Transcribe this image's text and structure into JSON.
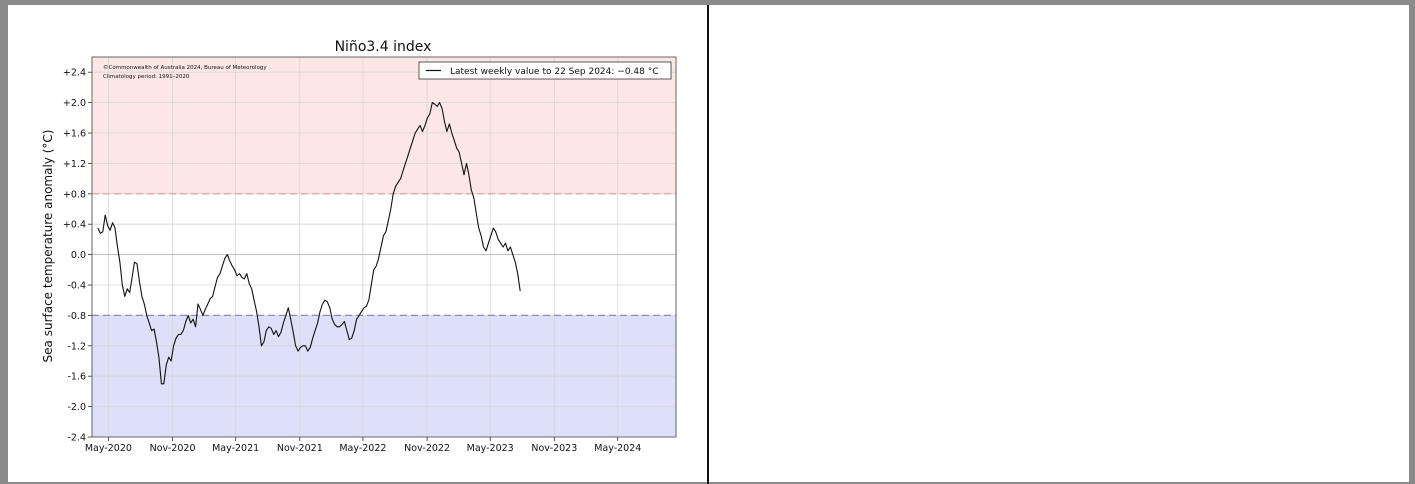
{
  "chart_data": {
    "type": "line",
    "title": "Niño3.4 index",
    "ylabel": "Sea surface temperature anomaly (°C)",
    "xlabel": "",
    "ylim": [
      -2.4,
      2.6
    ],
    "yticks": [
      "+2.4",
      "+2.0",
      "+1.6",
      "+1.2",
      "+0.8",
      "+0.4",
      "0.0",
      "-0.4",
      "-0.8",
      "-1.2",
      "-1.6",
      "-2.0",
      "-2.4"
    ],
    "ytick_values": [
      2.4,
      2.0,
      1.6,
      1.2,
      0.8,
      0.4,
      0.0,
      -0.4,
      -0.8,
      -1.2,
      -1.6,
      -2.0,
      -2.4
    ],
    "xticks": [
      "May-2020",
      "Nov-2020",
      "May-2021",
      "Nov-2021",
      "May-2022",
      "Nov-2022",
      "May-2023",
      "Nov-2023",
      "May-2024"
    ],
    "xtick_dates": [
      "2020-05-01",
      "2020-11-01",
      "2021-05-01",
      "2021-11-01",
      "2022-05-01",
      "2022-11-01",
      "2023-05-01",
      "2023-11-01",
      "2024-05-01"
    ],
    "xlim": [
      "2020-03-15",
      "2024-10-15"
    ],
    "grid": true,
    "legend_position": "top-right",
    "credit_line1": "©Commonwealth of Australia 2024, Bureau of Meteorology",
    "credit_line2": "Climatology period: 1991–2020",
    "thresholds": [
      0.8,
      -0.8
    ],
    "region_colors": {
      "warm": "#fde6e6",
      "cool": "#dedff9",
      "warm_line": "#e59a9a",
      "cool_line": "#8a8ac0",
      "series": "#111111"
    },
    "series": [
      {
        "name": "Latest weekly value to 22 Sep 2024: −0.48 °C",
        "points": [
          [
            "2020-04-01",
            0.35
          ],
          [
            "2020-04-08",
            0.28
          ],
          [
            "2020-04-15",
            0.3
          ],
          [
            "2020-04-22",
            0.52
          ],
          [
            "2020-04-29",
            0.38
          ],
          [
            "2020-05-06",
            0.32
          ],
          [
            "2020-05-13",
            0.42
          ],
          [
            "2020-05-20",
            0.35
          ],
          [
            "2020-05-27",
            0.1
          ],
          [
            "2020-06-03",
            -0.1
          ],
          [
            "2020-06-10",
            -0.4
          ],
          [
            "2020-06-17",
            -0.55
          ],
          [
            "2020-06-24",
            -0.45
          ],
          [
            "2020-07-01",
            -0.5
          ],
          [
            "2020-07-08",
            -0.3
          ],
          [
            "2020-07-15",
            -0.1
          ],
          [
            "2020-07-22",
            -0.12
          ],
          [
            "2020-07-29",
            -0.35
          ],
          [
            "2020-08-05",
            -0.55
          ],
          [
            "2020-08-12",
            -0.65
          ],
          [
            "2020-08-19",
            -0.8
          ],
          [
            "2020-08-26",
            -0.9
          ],
          [
            "2020-09-02",
            -1.0
          ],
          [
            "2020-09-09",
            -0.98
          ],
          [
            "2020-09-16",
            -1.15
          ],
          [
            "2020-09-23",
            -1.35
          ],
          [
            "2020-09-30",
            -1.7
          ],
          [
            "2020-10-07",
            -1.7
          ],
          [
            "2020-10-14",
            -1.45
          ],
          [
            "2020-10-21",
            -1.35
          ],
          [
            "2020-10-28",
            -1.4
          ],
          [
            "2020-11-04",
            -1.2
          ],
          [
            "2020-11-11",
            -1.1
          ],
          [
            "2020-11-18",
            -1.05
          ],
          [
            "2020-11-25",
            -1.05
          ],
          [
            "2020-12-02",
            -1.0
          ],
          [
            "2020-12-09",
            -0.88
          ],
          [
            "2020-12-16",
            -0.8
          ],
          [
            "2020-12-23",
            -0.9
          ],
          [
            "2020-12-30",
            -0.85
          ],
          [
            "2021-01-06",
            -0.95
          ],
          [
            "2021-01-13",
            -0.65
          ],
          [
            "2021-01-20",
            -0.72
          ],
          [
            "2021-01-27",
            -0.8
          ],
          [
            "2021-02-03",
            -0.72
          ],
          [
            "2021-02-10",
            -0.65
          ],
          [
            "2021-02-17",
            -0.58
          ],
          [
            "2021-02-24",
            -0.55
          ],
          [
            "2021-03-03",
            -0.42
          ],
          [
            "2021-03-10",
            -0.3
          ],
          [
            "2021-03-17",
            -0.25
          ],
          [
            "2021-03-24",
            -0.15
          ],
          [
            "2021-03-31",
            -0.05
          ],
          [
            "2021-04-07",
            0.0
          ],
          [
            "2021-04-14",
            -0.08
          ],
          [
            "2021-04-21",
            -0.15
          ],
          [
            "2021-04-28",
            -0.2
          ],
          [
            "2021-05-05",
            -0.28
          ],
          [
            "2021-05-12",
            -0.25
          ],
          [
            "2021-05-19",
            -0.3
          ],
          [
            "2021-05-26",
            -0.32
          ],
          [
            "2021-06-02",
            -0.25
          ],
          [
            "2021-06-09",
            -0.38
          ],
          [
            "2021-06-16",
            -0.45
          ],
          [
            "2021-06-23",
            -0.6
          ],
          [
            "2021-06-30",
            -0.75
          ],
          [
            "2021-07-07",
            -0.95
          ],
          [
            "2021-07-14",
            -1.2
          ],
          [
            "2021-07-21",
            -1.15
          ],
          [
            "2021-07-28",
            -1.0
          ],
          [
            "2021-08-04",
            -0.95
          ],
          [
            "2021-08-11",
            -0.97
          ],
          [
            "2021-08-18",
            -1.05
          ],
          [
            "2021-08-25",
            -1.0
          ],
          [
            "2021-09-01",
            -1.08
          ],
          [
            "2021-09-08",
            -1.02
          ],
          [
            "2021-09-15",
            -0.9
          ],
          [
            "2021-09-22",
            -0.8
          ],
          [
            "2021-09-29",
            -0.7
          ],
          [
            "2021-10-06",
            -0.85
          ],
          [
            "2021-10-13",
            -1.02
          ],
          [
            "2021-10-20",
            -1.2
          ],
          [
            "2021-10-27",
            -1.27
          ],
          [
            "2021-11-03",
            -1.22
          ],
          [
            "2021-11-10",
            -1.2
          ],
          [
            "2021-11-17",
            -1.2
          ],
          [
            "2021-11-24",
            -1.27
          ],
          [
            "2021-12-01",
            -1.22
          ],
          [
            "2021-12-08",
            -1.1
          ],
          [
            "2021-12-15",
            -1.0
          ],
          [
            "2021-12-22",
            -0.9
          ],
          [
            "2021-12-29",
            -0.75
          ],
          [
            "2022-01-05",
            -0.65
          ],
          [
            "2022-01-12",
            -0.6
          ],
          [
            "2022-01-19",
            -0.62
          ],
          [
            "2022-01-26",
            -0.7
          ],
          [
            "2022-02-02",
            -0.85
          ],
          [
            "2022-02-09",
            -0.92
          ],
          [
            "2022-02-16",
            -0.95
          ],
          [
            "2022-02-23",
            -0.95
          ],
          [
            "2022-03-02",
            -0.92
          ],
          [
            "2022-03-09",
            -0.88
          ],
          [
            "2022-03-16",
            -1.0
          ],
          [
            "2022-03-23",
            -1.12
          ],
          [
            "2022-03-30",
            -1.1
          ],
          [
            "2022-04-06",
            -1.0
          ],
          [
            "2022-04-13",
            -0.85
          ],
          [
            "2022-04-20",
            -0.8
          ],
          [
            "2022-04-27",
            -0.75
          ],
          [
            "2022-05-04",
            -0.7
          ],
          [
            "2022-05-11",
            -0.68
          ],
          [
            "2022-05-18",
            -0.6
          ],
          [
            "2022-05-25",
            -0.4
          ],
          [
            "2022-06-01",
            -0.2
          ],
          [
            "2022-06-08",
            -0.15
          ],
          [
            "2022-06-15",
            -0.05
          ],
          [
            "2022-06-22",
            0.1
          ],
          [
            "2022-06-29",
            0.25
          ],
          [
            "2022-07-06",
            0.3
          ],
          [
            "2022-07-13",
            0.45
          ],
          [
            "2022-07-20",
            0.6
          ],
          [
            "2022-07-27",
            0.8
          ],
          [
            "2022-08-03",
            0.9
          ],
          [
            "2022-08-10",
            0.95
          ],
          [
            "2022-08-17",
            1.0
          ],
          [
            "2022-08-24",
            1.1
          ],
          [
            "2022-08-31",
            1.2
          ],
          [
            "2022-09-07",
            1.3
          ],
          [
            "2022-09-14",
            1.4
          ],
          [
            "2022-09-21",
            1.5
          ],
          [
            "2022-09-28",
            1.6
          ],
          [
            "2022-10-05",
            1.65
          ],
          [
            "2022-10-12",
            1.7
          ],
          [
            "2022-10-19",
            1.62
          ],
          [
            "2022-10-26",
            1.7
          ],
          [
            "2022-11-02",
            1.8
          ],
          [
            "2022-11-09",
            1.85
          ],
          [
            "2022-11-16",
            2.0
          ],
          [
            "2022-11-23",
            1.98
          ],
          [
            "2022-11-30",
            1.95
          ],
          [
            "2022-12-07",
            2.0
          ],
          [
            "2022-12-14",
            1.92
          ],
          [
            "2022-12-21",
            1.75
          ],
          [
            "2022-12-28",
            1.62
          ],
          [
            "2023-01-04",
            1.72
          ],
          [
            "2023-01-11",
            1.6
          ],
          [
            "2023-01-18",
            1.5
          ],
          [
            "2023-01-25",
            1.4
          ],
          [
            "2023-02-01",
            1.35
          ],
          [
            "2023-02-08",
            1.2
          ],
          [
            "2023-02-15",
            1.05
          ],
          [
            "2023-02-22",
            1.2
          ],
          [
            "2023-03-01",
            1.05
          ],
          [
            "2023-03-08",
            0.85
          ],
          [
            "2023-03-15",
            0.75
          ],
          [
            "2023-03-22",
            0.55
          ],
          [
            "2023-03-29",
            0.35
          ],
          [
            "2023-04-05",
            0.25
          ],
          [
            "2023-04-12",
            0.1
          ],
          [
            "2023-04-19",
            0.05
          ],
          [
            "2023-04-26",
            0.15
          ],
          [
            "2023-05-03",
            0.25
          ],
          [
            "2023-05-10",
            0.35
          ],
          [
            "2023-05-17",
            0.3
          ],
          [
            "2023-05-24",
            0.2
          ],
          [
            "2023-05-31",
            0.15
          ],
          [
            "2023-06-07",
            0.1
          ],
          [
            "2023-06-14",
            0.15
          ],
          [
            "2023-06-21",
            0.05
          ],
          [
            "2023-06-28",
            0.1
          ],
          [
            "2023-07-05",
            0.0
          ],
          [
            "2023-07-12",
            -0.1
          ],
          [
            "2023-07-19",
            -0.25
          ],
          [
            "2023-07-26",
            -0.48
          ]
        ]
      }
    ]
  }
}
